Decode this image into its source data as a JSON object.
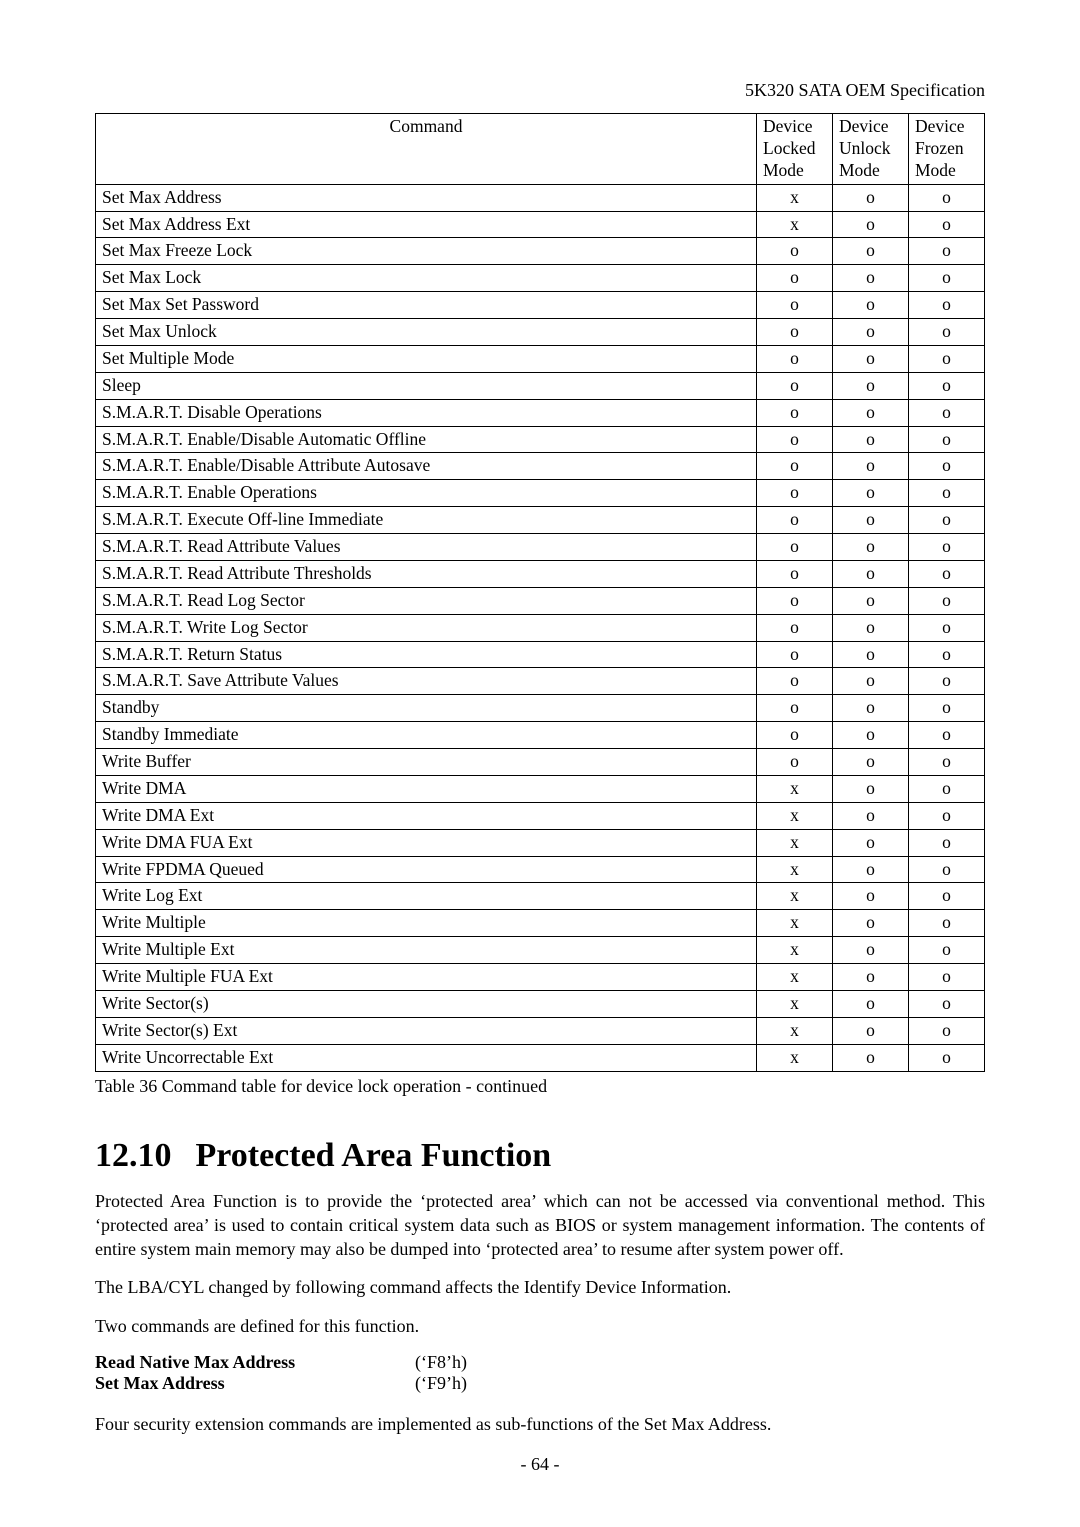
{
  "header": {
    "doc_title": "5K320 SATA OEM Specification"
  },
  "table": {
    "columns": [
      "Command",
      "Device Locked Mode",
      "Device Unlock Mode",
      "Device Frozen Mode"
    ],
    "col_widths": [
      "auto",
      "76px",
      "76px",
      "76px"
    ],
    "rows": [
      [
        "Set Max Address",
        "x",
        "o",
        "o"
      ],
      [
        "Set Max Address Ext",
        "x",
        "o",
        "o"
      ],
      [
        "Set Max Freeze Lock",
        "o",
        "o",
        "o"
      ],
      [
        "Set Max Lock",
        "o",
        "o",
        "o"
      ],
      [
        "Set Max Set Password",
        "o",
        "o",
        "o"
      ],
      [
        "Set Max Unlock",
        "o",
        "o",
        "o"
      ],
      [
        "Set Multiple Mode",
        "o",
        "o",
        "o"
      ],
      [
        "Sleep",
        "o",
        "o",
        "o"
      ],
      [
        "S.M.A.R.T. Disable Operations",
        "o",
        "o",
        "o"
      ],
      [
        "S.M.A.R.T. Enable/Disable Automatic Offline",
        "o",
        "o",
        "o"
      ],
      [
        "S.M.A.R.T. Enable/Disable Attribute Autosave",
        "o",
        "o",
        "o"
      ],
      [
        "S.M.A.R.T. Enable Operations",
        "o",
        "o",
        "o"
      ],
      [
        "S.M.A.R.T. Execute Off-line Immediate",
        "o",
        "o",
        "o"
      ],
      [
        "S.M.A.R.T. Read Attribute Values",
        "o",
        "o",
        "o"
      ],
      [
        "S.M.A.R.T. Read Attribute Thresholds",
        "o",
        "o",
        "o"
      ],
      [
        "S.M.A.R.T. Read Log Sector",
        "o",
        "o",
        "o"
      ],
      [
        "S.M.A.R.T. Write Log Sector",
        "o",
        "o",
        "o"
      ],
      [
        "S.M.A.R.T. Return Status",
        "o",
        "o",
        "o"
      ],
      [
        "S.M.A.R.T. Save Attribute Values",
        "o",
        "o",
        "o"
      ],
      [
        "Standby",
        "o",
        "o",
        "o"
      ],
      [
        "Standby Immediate",
        "o",
        "o",
        "o"
      ],
      [
        "Write Buffer",
        "o",
        "o",
        "o"
      ],
      [
        "Write DMA",
        "x",
        "o",
        "o"
      ],
      [
        "Write DMA Ext",
        "x",
        "o",
        "o"
      ],
      [
        "Write DMA FUA Ext",
        "x",
        "o",
        "o"
      ],
      [
        "Write FPDMA Queued",
        "x",
        "o",
        "o"
      ],
      [
        "Write Log Ext",
        "x",
        "o",
        "o"
      ],
      [
        "Write Multiple",
        "x",
        "o",
        "o"
      ],
      [
        "Write Multiple Ext",
        "x",
        "o",
        "o"
      ],
      [
        "Write Multiple FUA Ext",
        "x",
        "o",
        "o"
      ],
      [
        "Write Sector(s)",
        "x",
        "o",
        "o"
      ],
      [
        "Write Sector(s) Ext",
        "x",
        "o",
        "o"
      ],
      [
        "Write Uncorrectable Ext",
        "x",
        "o",
        "o"
      ]
    ],
    "caption": "Table 36 Command table for device lock operation - continued"
  },
  "section": {
    "number": "12.10",
    "title": "Protected Area Function",
    "paragraphs": [
      "Protected Area Function is to provide the ‘protected area’ which can not be accessed via conventional method. This ‘protected area’ is used to contain critical system data such as BIOS or system management information. The contents of entire system main memory may also be dumped into ‘protected area’ to resume after system power off.",
      "The LBA/CYL changed by following command affects the Identify Device Information.",
      "Two commands are defined for this function."
    ],
    "command_defs": [
      {
        "name": "Read Native Max Address",
        "code": "(‘F8’h)"
      },
      {
        "name": "Set Max Address",
        "code": "(‘F9’h)"
      }
    ],
    "paragraph_after": "Four security extension commands are implemented as sub-functions of the Set Max Address."
  },
  "page_number": "- 64 -"
}
